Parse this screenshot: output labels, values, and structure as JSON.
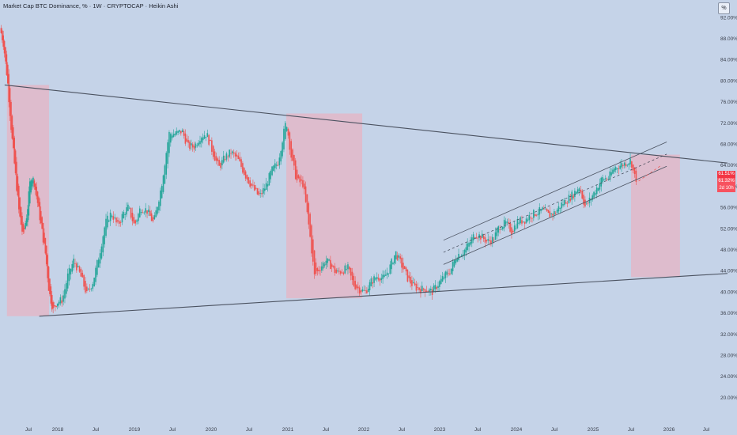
{
  "header": {
    "title": "Market Cap BTC Dominance, % · 1W · CRYPTOCAP · Heikin Ashi",
    "scale_button": "%"
  },
  "price_tags": [
    {
      "text": "61.51%",
      "color": "#f23645"
    },
    {
      "text": "61.32%",
      "color": "#f7525f"
    },
    {
      "text": "2d 10h",
      "color": "#f7525f"
    }
  ],
  "chart_data": {
    "type": "candlestick",
    "chart_style": "Heikin Ashi",
    "x_ticks": [
      "Jul",
      "2018",
      "Jul",
      "2019",
      "Jul",
      "2020",
      "Jul",
      "2021",
      "Jul",
      "2022",
      "Jul",
      "2023",
      "Jul",
      "2024",
      "Jul",
      "2025",
      "Jul",
      "2026",
      "Jul"
    ],
    "y_ticks": [
      "92.00%",
      "88.00%",
      "84.00%",
      "80.00%",
      "76.00%",
      "72.00%",
      "68.00%",
      "64.00%",
      "60.00%",
      "56.00%",
      "52.00%",
      "48.00%",
      "44.00%",
      "40.00%",
      "36.00%",
      "32.00%",
      "28.00%",
      "24.00%",
      "20.00%"
    ],
    "x_range": [
      2017.0,
      2026.8
    ],
    "y_range": [
      17.0,
      95.0
    ],
    "colors": {
      "up": "#26a69a",
      "down": "#ef5350",
      "trendline": "#4b5260",
      "box": "#f2a9b7",
      "channel": "#3d4452"
    },
    "series_anchors": [
      [
        2017.0,
        90.0
      ],
      [
        2017.06,
        87.0
      ],
      [
        2017.13,
        80.0
      ],
      [
        2017.2,
        70.0
      ],
      [
        2017.26,
        63.0
      ],
      [
        2017.33,
        55.0
      ],
      [
        2017.4,
        50.5
      ],
      [
        2017.47,
        55.0
      ],
      [
        2017.53,
        62.0
      ],
      [
        2017.59,
        61.0
      ],
      [
        2017.65,
        57.0
      ],
      [
        2017.72,
        52.0
      ],
      [
        2017.79,
        47.0
      ],
      [
        2017.85,
        40.0
      ],
      [
        2017.92,
        36.5
      ],
      [
        2017.98,
        38.0
      ],
      [
        2018.06,
        38.5
      ],
      [
        2018.13,
        43.0
      ],
      [
        2018.21,
        46.0
      ],
      [
        2018.3,
        43.0
      ],
      [
        2018.38,
        39.5
      ],
      [
        2018.46,
        42.0
      ],
      [
        2018.54,
        47.0
      ],
      [
        2018.62,
        53.0
      ],
      [
        2018.7,
        55.0
      ],
      [
        2018.78,
        52.5
      ],
      [
        2018.86,
        55.0
      ],
      [
        2018.92,
        56.0
      ],
      [
        2019.0,
        52.5
      ],
      [
        2019.08,
        56.0
      ],
      [
        2019.16,
        55.5
      ],
      [
        2019.25,
        53.0
      ],
      [
        2019.35,
        60.0
      ],
      [
        2019.45,
        70.0
      ],
      [
        2019.55,
        70.0
      ],
      [
        2019.62,
        70.5
      ],
      [
        2019.7,
        67.5
      ],
      [
        2019.78,
        67.5
      ],
      [
        2019.86,
        69.5
      ],
      [
        2019.94,
        70.0
      ],
      [
        2020.02,
        66.5
      ],
      [
        2020.1,
        63.5
      ],
      [
        2020.18,
        65.5
      ],
      [
        2020.26,
        66.5
      ],
      [
        2020.35,
        65.0
      ],
      [
        2020.45,
        62.0
      ],
      [
        2020.55,
        59.5
      ],
      [
        2020.63,
        58.0
      ],
      [
        2020.71,
        60.0
      ],
      [
        2020.79,
        63.0
      ],
      [
        2020.87,
        64.5
      ],
      [
        2020.93,
        69.0
      ],
      [
        2020.98,
        72.5
      ],
      [
        2021.05,
        65.0
      ],
      [
        2021.12,
        61.0
      ],
      [
        2021.2,
        60.5
      ],
      [
        2021.28,
        52.0
      ],
      [
        2021.35,
        43.0
      ],
      [
        2021.42,
        44.5
      ],
      [
        2021.5,
        46.0
      ],
      [
        2021.57,
        45.0
      ],
      [
        2021.64,
        43.5
      ],
      [
        2021.71,
        44.0
      ],
      [
        2021.79,
        44.5
      ],
      [
        2021.86,
        41.5
      ],
      [
        2021.94,
        40.5
      ],
      [
        2022.02,
        40.0
      ],
      [
        2022.1,
        42.0
      ],
      [
        2022.18,
        43.0
      ],
      [
        2022.26,
        42.5
      ],
      [
        2022.34,
        44.5
      ],
      [
        2022.42,
        47.5
      ],
      [
        2022.5,
        45.0
      ],
      [
        2022.58,
        42.5
      ],
      [
        2022.66,
        41.0
      ],
      [
        2022.74,
        40.5
      ],
      [
        2022.82,
        40.5
      ],
      [
        2022.9,
        40.0
      ],
      [
        2022.98,
        41.5
      ],
      [
        2023.06,
        43.0
      ],
      [
        2023.14,
        44.0
      ],
      [
        2023.22,
        47.0
      ],
      [
        2023.3,
        47.5
      ],
      [
        2023.38,
        49.0
      ],
      [
        2023.46,
        51.0
      ],
      [
        2023.54,
        50.5
      ],
      [
        2023.62,
        49.5
      ],
      [
        2023.7,
        50.0
      ],
      [
        2023.78,
        52.5
      ],
      [
        2023.86,
        53.0
      ],
      [
        2023.94,
        51.5
      ],
      [
        2024.02,
        53.5
      ],
      [
        2024.1,
        53.5
      ],
      [
        2024.18,
        54.5
      ],
      [
        2024.26,
        55.0
      ],
      [
        2024.34,
        55.5
      ],
      [
        2024.42,
        54.5
      ],
      [
        2024.5,
        55.0
      ],
      [
        2024.58,
        56.5
      ],
      [
        2024.66,
        57.5
      ],
      [
        2024.74,
        58.5
      ],
      [
        2024.82,
        60.0
      ],
      [
        2024.9,
        56.0
      ],
      [
        2024.96,
        57.5
      ],
      [
        2025.04,
        59.5
      ],
      [
        2025.12,
        61.5
      ],
      [
        2025.2,
        61.5
      ],
      [
        2025.28,
        63.5
      ],
      [
        2025.36,
        64.0
      ],
      [
        2025.44,
        64.5
      ],
      [
        2025.5,
        65.0
      ],
      [
        2025.54,
        62.0
      ],
      [
        2025.57,
        61.4
      ]
    ],
    "trendlines": [
      {
        "name": "upper-trendline",
        "points": [
          [
            2017.08,
            79.2
          ],
          [
            2026.8,
            64.4
          ]
        ]
      },
      {
        "name": "lower-trendline",
        "points": [
          [
            2017.68,
            35.4
          ],
          [
            2026.8,
            43.5
          ]
        ]
      },
      {
        "name": "channel-upper",
        "points": [
          [
            2023.05,
            49.8
          ],
          [
            2025.97,
            68.4
          ]
        ]
      },
      {
        "name": "channel-lower",
        "points": [
          [
            2023.05,
            45.2
          ],
          [
            2025.97,
            63.8
          ]
        ]
      }
    ],
    "dashed_lines": [
      {
        "name": "channel-midline",
        "points": [
          [
            2023.05,
            47.5
          ],
          [
            2025.97,
            66.1
          ]
        ]
      },
      {
        "name": "projection-line",
        "points": [
          [
            2025.6,
            61.0
          ],
          [
            2025.9,
            64.0
          ]
        ]
      }
    ],
    "shaded_boxes": [
      {
        "name": "cycle-box-2017",
        "x": [
          2017.12,
          2017.85
        ],
        "y": [
          35.4,
          79.2
        ]
      },
      {
        "name": "cycle-box-2021",
        "x": [
          2020.98,
          2021.98
        ],
        "y": [
          38.8,
          73.8
        ]
      },
      {
        "name": "cycle-box-2025",
        "x": [
          2025.5,
          2026.15
        ],
        "y": [
          42.8,
          66.0
        ]
      }
    ]
  }
}
